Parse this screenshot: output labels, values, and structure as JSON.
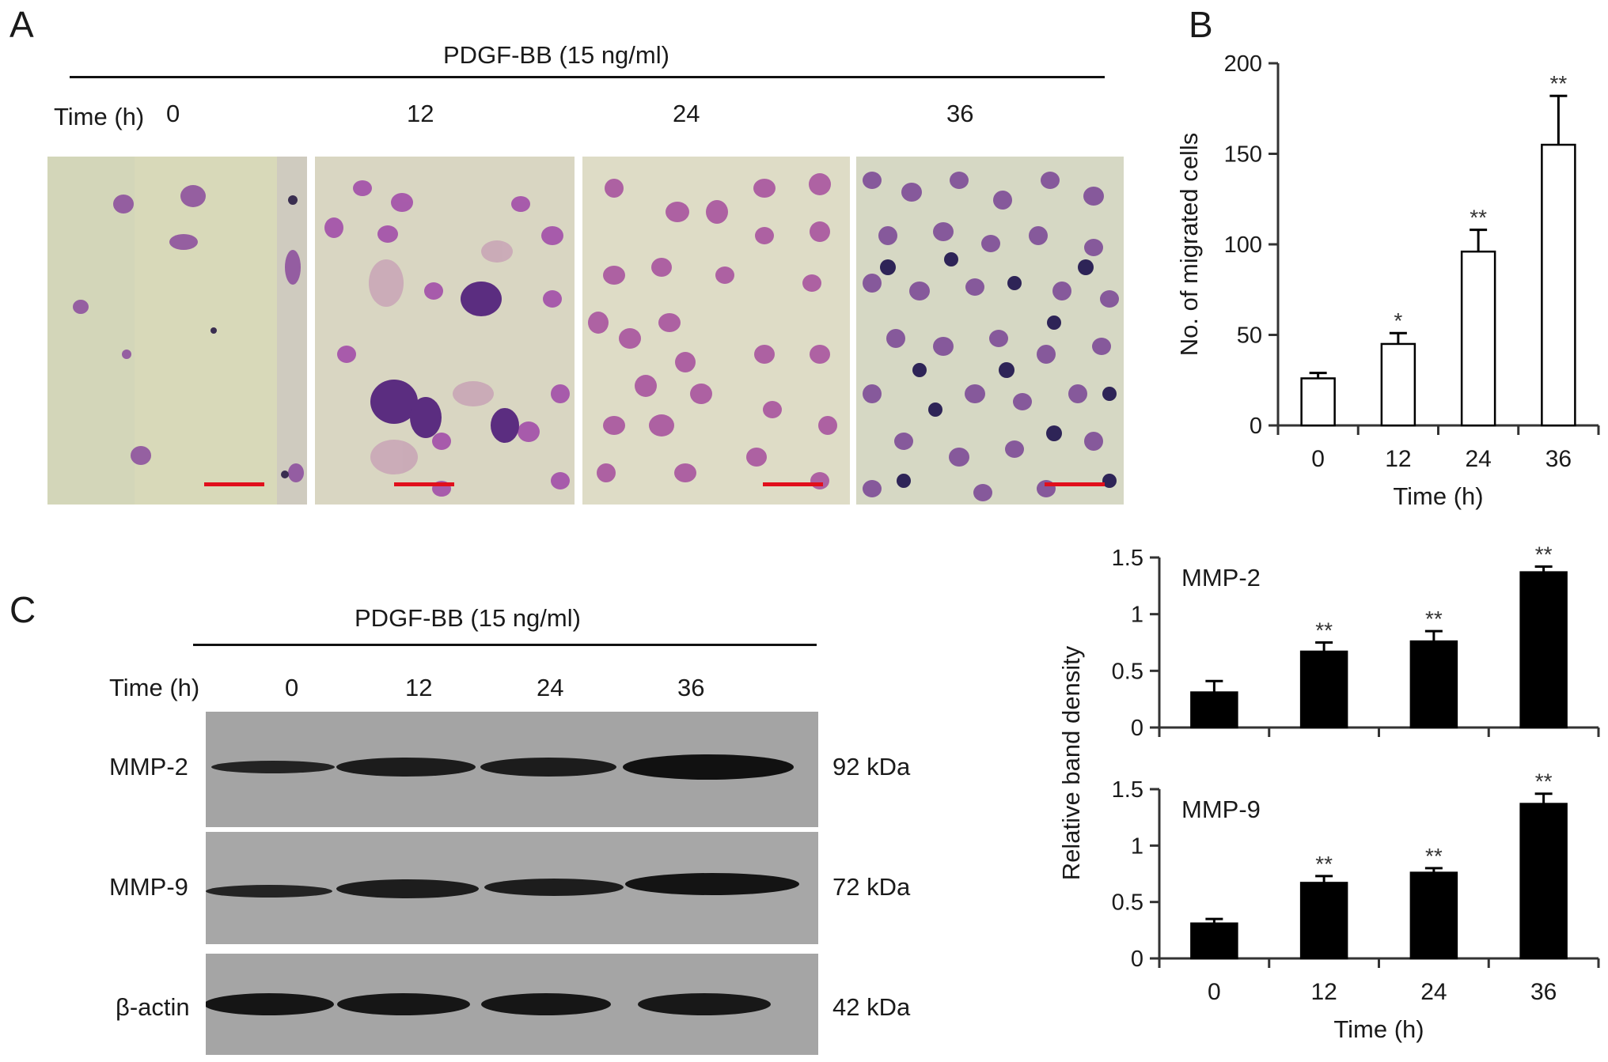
{
  "panel_a": {
    "letter": "A",
    "treatment": "PDGF-BB (15 ng/ml)",
    "time_label": "Time (h)",
    "timepoints": [
      "0",
      "12",
      "24",
      "36"
    ]
  },
  "panel_b": {
    "letter": "B"
  },
  "panel_c": {
    "letter": "C",
    "treatment": "PDGF-BB (15 ng/ml)",
    "time_label": "Time (h)",
    "timepoints": [
      "0",
      "12",
      "24",
      "36"
    ],
    "rows": [
      {
        "protein": "MMP-2",
        "size": "92 kDa"
      },
      {
        "protein": "MMP-9",
        "size": "72 kDa"
      },
      {
        "protein": "β-actin",
        "size": "42 kDa"
      }
    ]
  },
  "chart_data": [
    {
      "type": "bar",
      "panel": "B",
      "categories": [
        "0",
        "12",
        "24",
        "36"
      ],
      "values": [
        26,
        45,
        96,
        155
      ],
      "errors": [
        3,
        6,
        12,
        27
      ],
      "significance": [
        "",
        "*",
        "**",
        "**"
      ],
      "xlabel": "Time (h)",
      "ylabel": "No. of migrated cells",
      "ylim": [
        0,
        200
      ],
      "yticks": [
        "0",
        "50",
        "100",
        "150",
        "200"
      ],
      "bar_fill": "#ffffff",
      "bar_stroke": "#000000"
    },
    {
      "type": "bar",
      "panel": "C",
      "annotation": "MMP-2",
      "categories": [
        "0",
        "12",
        "24",
        "36"
      ],
      "values": [
        0.31,
        0.67,
        0.76,
        1.37
      ],
      "errors": [
        0.1,
        0.08,
        0.09,
        0.05
      ],
      "significance": [
        "",
        "**",
        "**",
        "**"
      ],
      "ylim": [
        0,
        1.5
      ],
      "yticks": [
        "0",
        "0.5",
        "1",
        "1.5"
      ],
      "bar_fill": "#000000"
    },
    {
      "type": "bar",
      "panel": "C",
      "annotation": "MMP-9",
      "categories": [
        "0",
        "12",
        "24",
        "36"
      ],
      "values": [
        0.31,
        0.67,
        0.76,
        1.37
      ],
      "errors": [
        0.04,
        0.06,
        0.04,
        0.09
      ],
      "significance": [
        "",
        "**",
        "**",
        "**"
      ],
      "xlabel": "Time (h)",
      "ylim": [
        0,
        1.5
      ],
      "yticks": [
        "0",
        "0.5",
        "1",
        "1.5"
      ],
      "bar_fill": "#000000"
    }
  ],
  "shared_ylabel": "Relative band density"
}
